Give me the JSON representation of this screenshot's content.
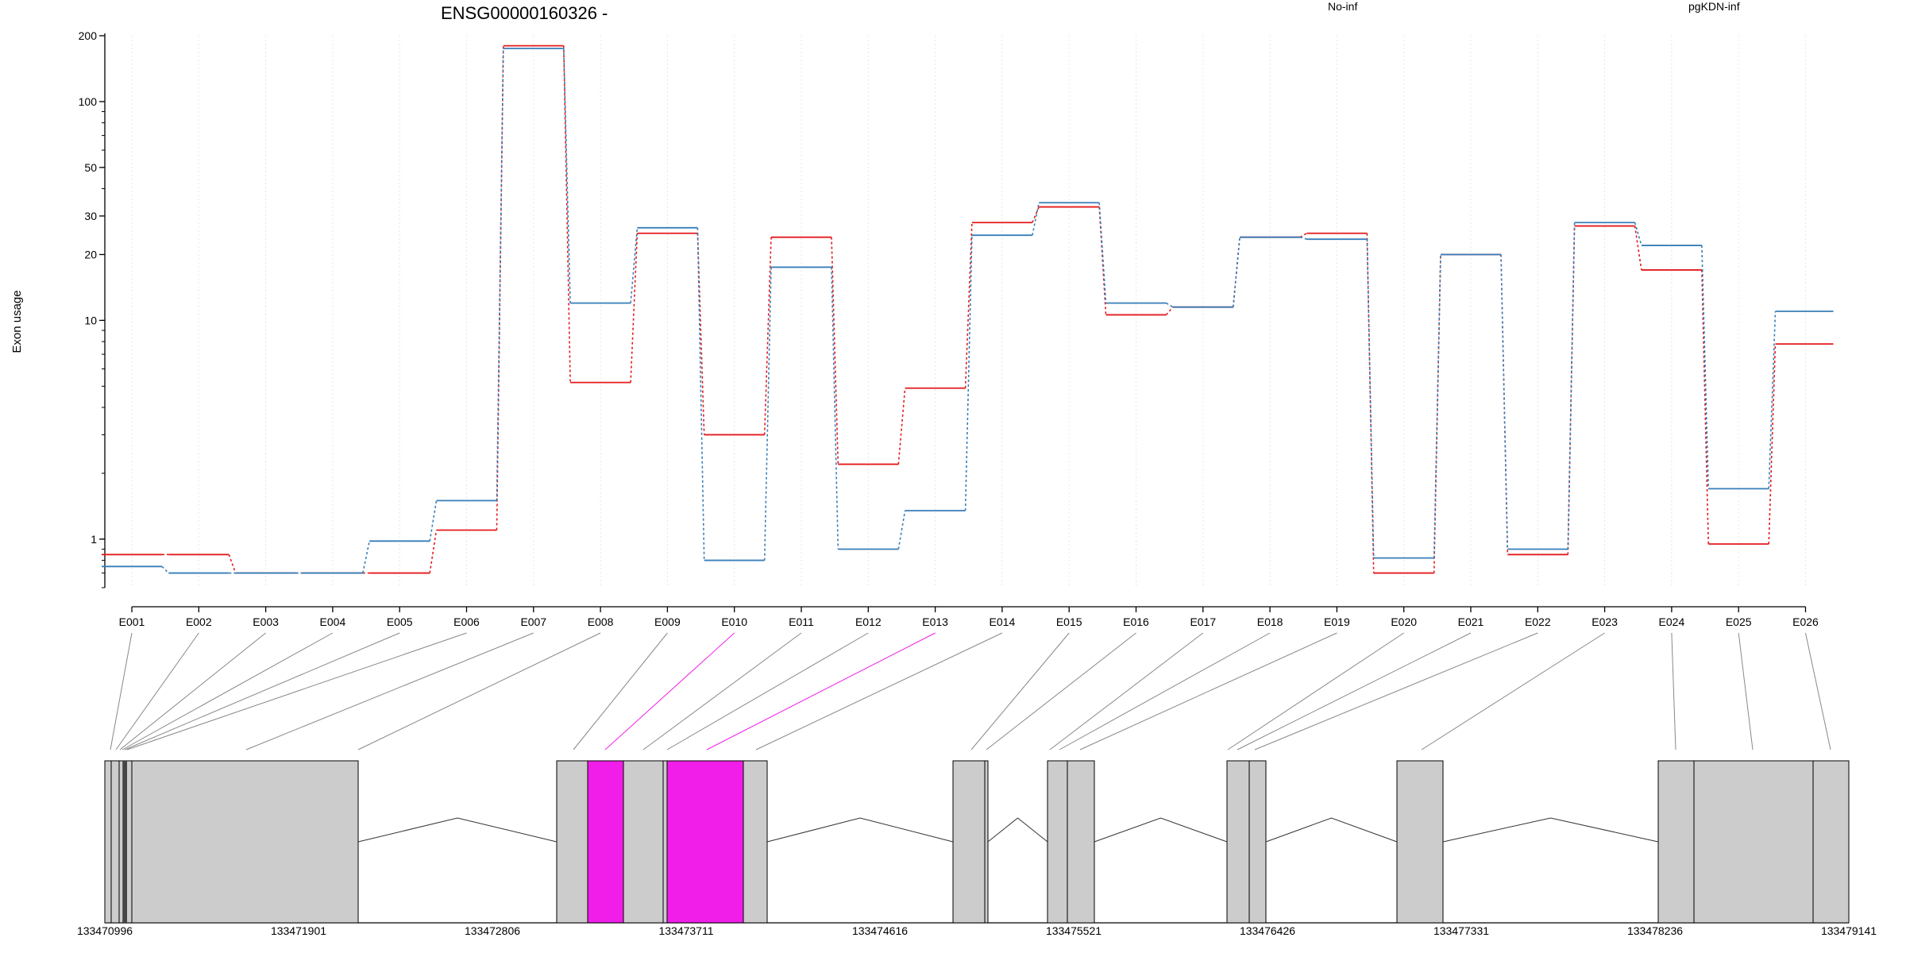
{
  "chart_data": {
    "type": "line",
    "title": "ENSG00000160326 -",
    "ylabel": "Exon usage",
    "xlabel": "",
    "y_scale": "log",
    "ylim": [
      0.6,
      200
    ],
    "y_ticks": [
      1,
      10,
      20,
      30,
      50,
      100,
      200
    ],
    "grid": "vertical dotted lines at exon positions",
    "legend": [
      "No-inf",
      "pgKDN-inf"
    ],
    "legend_placement": "top-right",
    "categories": [
      "E001",
      "E002",
      "E003",
      "E004",
      "E005",
      "E006",
      "E007",
      "E008",
      "E009",
      "E010",
      "E011",
      "E012",
      "E013",
      "E014",
      "E015",
      "E016",
      "E017",
      "E018",
      "E019",
      "E020",
      "E021",
      "E022",
      "E023",
      "E024",
      "E025",
      "E026"
    ],
    "series": [
      {
        "name": "No-inf",
        "color": "#e41a1c",
        "values": [
          0.85,
          0.85,
          0.7,
          0.7,
          0.7,
          1.1,
          180,
          5.2,
          25,
          3.0,
          24,
          2.2,
          4.9,
          28,
          33,
          10.6,
          11.5,
          24,
          25,
          0.7,
          20,
          0.85,
          27,
          17,
          0.95,
          7.8
        ]
      },
      {
        "name": "pgKDN-inf",
        "color": "#377eb8",
        "values": [
          0.75,
          0.7,
          0.7,
          0.7,
          0.98,
          1.5,
          175,
          12,
          26.5,
          0.8,
          17.5,
          0.9,
          1.35,
          24.5,
          34.5,
          12,
          11.5,
          24,
          23.5,
          0.82,
          20,
          0.9,
          28,
          22,
          1.7,
          11
        ]
      }
    ],
    "gene_model": {
      "coordinate_labels": [
        "133470996",
        "133471901",
        "133472806",
        "133473711",
        "133474616",
        "133475521",
        "133476426",
        "133477331",
        "133478236",
        "133479141"
      ],
      "highlight_color": "#f01ee8",
      "exon_color": "#cccccc",
      "highlighted_exons": [
        "E010",
        "E013"
      ]
    }
  }
}
